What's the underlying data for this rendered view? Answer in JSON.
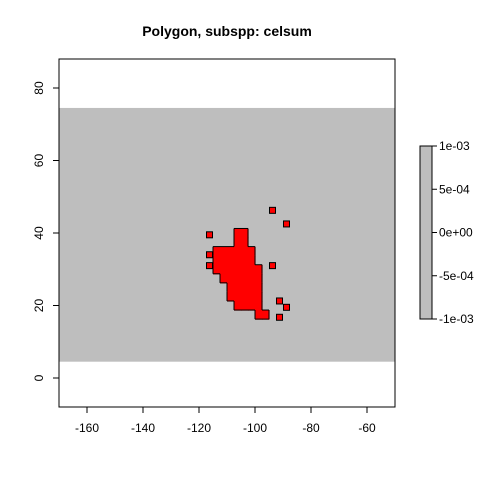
{
  "title": "Polygon, subspp: celsum",
  "colors": {
    "background_band": "#bebebe",
    "polygon_fill": "#ff0000",
    "polygon_stroke": "#000000",
    "legend_fill": "#bebebe"
  },
  "chart_data": {
    "type": "heatmap",
    "title": "Polygon, subspp: celsum",
    "xlim": [
      -170,
      -50
    ],
    "ylim": [
      -8,
      88
    ],
    "x_ticks": [
      -160,
      -140,
      -120,
      -100,
      -80,
      -60
    ],
    "y_ticks": [
      0,
      20,
      40,
      60,
      80
    ],
    "x_tick_labels": [
      "-160",
      "-140",
      "-120",
      "-100",
      "-80",
      "-60"
    ],
    "y_tick_labels": [
      "0",
      "20",
      "40",
      "60",
      "80"
    ],
    "background_band": {
      "lat_min": 4.5,
      "lat_max": 74.5
    },
    "cell_size_deg": 2.5,
    "polygon_cells": [
      [
        -106.25,
        40
      ],
      [
        -103.75,
        40
      ],
      [
        -106.25,
        37.5
      ],
      [
        -103.75,
        37.5
      ],
      [
        -113.75,
        35
      ],
      [
        -111.25,
        35
      ],
      [
        -108.75,
        35
      ],
      [
        -106.25,
        35
      ],
      [
        -103.75,
        35
      ],
      [
        -101.25,
        35
      ],
      [
        -113.75,
        32.5
      ],
      [
        -111.25,
        32.5
      ],
      [
        -108.75,
        32.5
      ],
      [
        -106.25,
        32.5
      ],
      [
        -103.75,
        32.5
      ],
      [
        -101.25,
        32.5
      ],
      [
        -113.75,
        30
      ],
      [
        -111.25,
        30
      ],
      [
        -108.75,
        30
      ],
      [
        -106.25,
        30
      ],
      [
        -103.75,
        30
      ],
      [
        -101.25,
        30
      ],
      [
        -98.75,
        30
      ],
      [
        -111.25,
        27.5
      ],
      [
        -108.75,
        27.5
      ],
      [
        -106.25,
        27.5
      ],
      [
        -103.75,
        27.5
      ],
      [
        -101.25,
        27.5
      ],
      [
        -98.75,
        27.5
      ],
      [
        -108.75,
        25
      ],
      [
        -106.25,
        25
      ],
      [
        -103.75,
        25
      ],
      [
        -101.25,
        25
      ],
      [
        -98.75,
        25
      ],
      [
        -108.75,
        22.5
      ],
      [
        -106.25,
        22.5
      ],
      [
        -103.75,
        22.5
      ],
      [
        -101.25,
        22.5
      ],
      [
        -98.75,
        22.5
      ],
      [
        -106.25,
        20
      ],
      [
        -103.75,
        20
      ],
      [
        -101.25,
        20
      ],
      [
        -98.75,
        20
      ],
      [
        -98.75,
        17.5
      ],
      [
        -96.25,
        17.5
      ]
    ],
    "isolated_cells": [
      [
        -93.75,
        46.25
      ],
      [
        -88.75,
        42.5
      ],
      [
        -116.25,
        39.5
      ],
      [
        -116.25,
        34
      ],
      [
        -116.25,
        31
      ],
      [
        -93.75,
        31
      ],
      [
        -91.25,
        21.25
      ],
      [
        -88.75,
        19.5
      ],
      [
        -91.25,
        16.75
      ]
    ],
    "legend": {
      "placement": "right",
      "range": [
        -0.001,
        0.001
      ],
      "ticks": [
        "1e-03",
        "5e-04",
        "0e+00",
        "-5e-04",
        "-1e-03"
      ]
    }
  }
}
